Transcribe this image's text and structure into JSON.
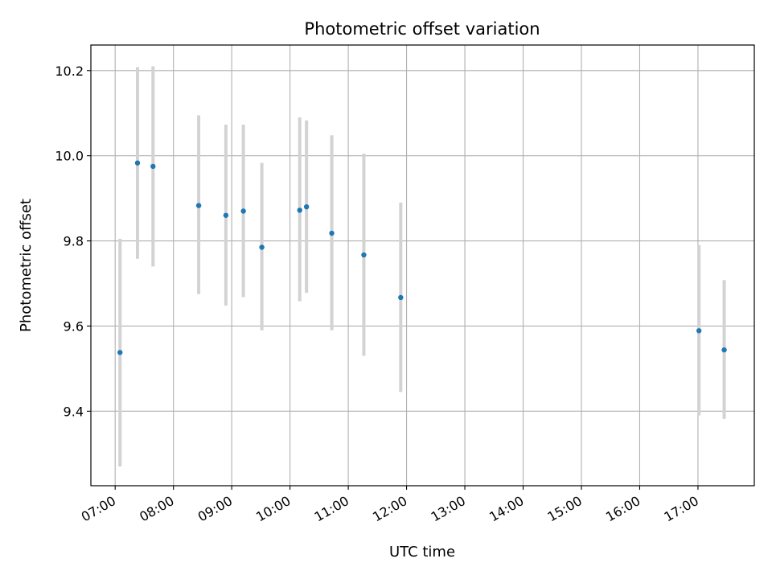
{
  "chart_data": {
    "type": "scatter",
    "title": "Photometric offset variation",
    "xlabel": "UTC time",
    "ylabel": "Photometric offset",
    "x_ticks": [
      "07:00",
      "08:00",
      "09:00",
      "10:00",
      "11:00",
      "12:00",
      "13:00",
      "14:00",
      "15:00",
      "16:00",
      "17:00"
    ],
    "y_ticks": [
      "9.4",
      "9.6",
      "9.8",
      "10.0",
      "10.2"
    ],
    "xlim": [
      "06:35",
      "17:58"
    ],
    "ylim": [
      9.225,
      10.26
    ],
    "grid": true,
    "colors": {
      "point": "#1f77b4",
      "errorbar": "#d3d3d3",
      "grid": "#b0b0b0"
    },
    "points": [
      {
        "x": "07:05",
        "y": 9.538,
        "ylow": 9.27,
        "yhigh": 9.805
      },
      {
        "x": "07:23",
        "y": 9.983,
        "ylow": 9.758,
        "yhigh": 10.208
      },
      {
        "x": "07:39",
        "y": 9.975,
        "ylow": 9.74,
        "yhigh": 10.21
      },
      {
        "x": "08:26",
        "y": 9.883,
        "ylow": 9.675,
        "yhigh": 10.095
      },
      {
        "x": "08:54",
        "y": 9.86,
        "ylow": 9.648,
        "yhigh": 10.073
      },
      {
        "x": "09:12",
        "y": 9.87,
        "ylow": 9.668,
        "yhigh": 10.073
      },
      {
        "x": "09:31",
        "y": 9.785,
        "ylow": 9.59,
        "yhigh": 9.983
      },
      {
        "x": "10:10",
        "y": 9.872,
        "ylow": 9.658,
        "yhigh": 10.09
      },
      {
        "x": "10:17",
        "y": 9.88,
        "ylow": 9.678,
        "yhigh": 10.083
      },
      {
        "x": "10:43",
        "y": 9.818,
        "ylow": 9.59,
        "yhigh": 10.048
      },
      {
        "x": "11:16",
        "y": 9.767,
        "ylow": 9.53,
        "yhigh": 10.005
      },
      {
        "x": "11:54",
        "y": 9.667,
        "ylow": 9.445,
        "yhigh": 9.89
      },
      {
        "x": "17:01",
        "y": 9.589,
        "ylow": 9.39,
        "yhigh": 9.79
      },
      {
        "x": "17:27",
        "y": 9.544,
        "ylow": 9.382,
        "yhigh": 9.708
      }
    ]
  }
}
